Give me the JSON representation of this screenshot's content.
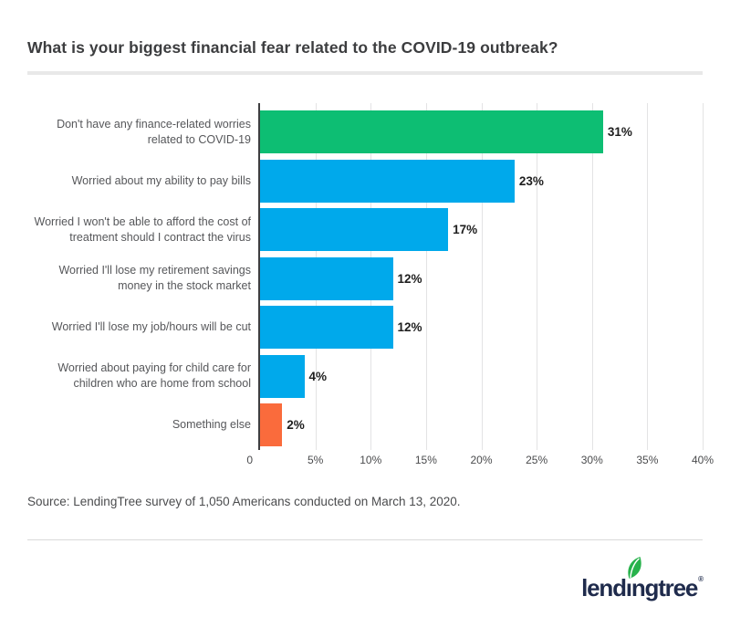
{
  "title": "What is your biggest financial fear related to the COVID-19 outbreak?",
  "source_note": "Source: LendingTree survey of 1,050 Americans conducted on March 13, 2020.",
  "logo": {
    "brand": "lendingtree",
    "text_parts": [
      "lend",
      "ı",
      "ngtree"
    ],
    "registered_mark": "®",
    "brand_color": "#1f2b4c",
    "leaf_color": "#27b24b"
  },
  "colors": {
    "bar_default": "#00a9eb",
    "bar_highlight": "#0dbe73",
    "bar_accent": "#fa6b3c",
    "axis": "#3e3e40",
    "gridline": "#e3e3e4",
    "title_text": "#3c3d3f",
    "label_text": "#56575a",
    "value_text": "#1e1e1e"
  },
  "chart_data": {
    "type": "bar",
    "orientation": "horizontal",
    "title": "What is your biggest financial fear related to the COVID-19 outbreak?",
    "categories": [
      "Don't have any finance-related worries related to COVID-19",
      "Worried about my ability to pay bills",
      "Worried I won't be able to afford the cost of treatment should I contract the virus",
      "Worried I'll lose my retirement savings money in the stock market",
      "Worried I'll lose my job/hours will be cut",
      "Worried about paying for child care for children who are home from school",
      "Something else"
    ],
    "values": [
      31,
      23,
      17,
      12,
      12,
      4,
      2
    ],
    "value_labels": [
      "31%",
      "23%",
      "17%",
      "12%",
      "12%",
      "4%",
      "2%"
    ],
    "bar_colors": [
      "#0dbe73",
      "#00a9eb",
      "#00a9eb",
      "#00a9eb",
      "#00a9eb",
      "#00a9eb",
      "#fa6b3c"
    ],
    "xlabel": "",
    "ylabel": "",
    "xlim": [
      0,
      40
    ],
    "x_ticks": [
      {
        "value": 0,
        "label": "0"
      },
      {
        "value": 5,
        "label": "5%"
      },
      {
        "value": 10,
        "label": "10%"
      },
      {
        "value": 15,
        "label": "15%"
      },
      {
        "value": 20,
        "label": "20%"
      },
      {
        "value": 25,
        "label": "25%"
      },
      {
        "value": 30,
        "label": "30%"
      },
      {
        "value": 35,
        "label": "35%"
      },
      {
        "value": 40,
        "label": "40%"
      }
    ],
    "grid": true,
    "legend": "none"
  }
}
